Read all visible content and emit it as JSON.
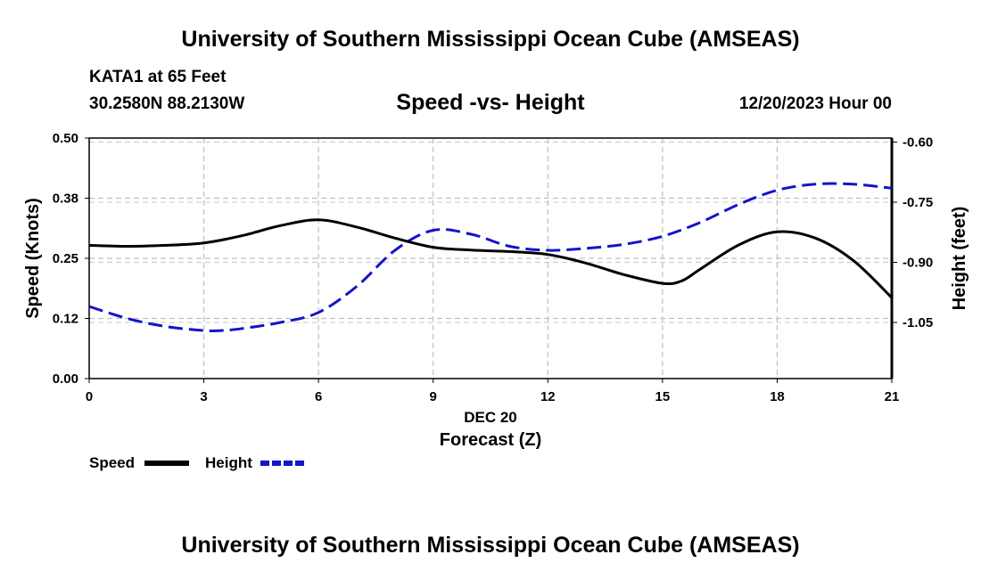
{
  "header": {
    "title_top": "University of Southern Mississippi Ocean Cube (AMSEAS)",
    "title_bottom": "University of Southern Mississippi Ocean Cube (AMSEAS)",
    "station": "KATA1 at 65 Feet",
    "coords": "30.2580N  88.2130W",
    "subtitle": "Speed -vs- Height",
    "datetime": "12/20/2023 Hour 00"
  },
  "chart_data": {
    "type": "line",
    "title": "Speed -vs- Height",
    "xlabel": "Forecast (Z)",
    "xlabel_date": "DEC 20",
    "ylabel": "Speed (Knots)",
    "y2label": "Height (feet)",
    "xlim": [
      0,
      21
    ],
    "ylim": [
      0,
      0.5
    ],
    "y2lim": [
      -1.19,
      -0.59
    ],
    "x_ticks": [
      0,
      3,
      6,
      9,
      12,
      15,
      18,
      21
    ],
    "x_tick_labels": [
      "0",
      "3",
      "6",
      "9",
      "12",
      "15",
      "18",
      "21"
    ],
    "y_ticks": [
      0,
      0.125,
      0.25,
      0.375,
      0.5
    ],
    "y_tick_labels": [
      "0.00",
      "0.12",
      "0.25",
      "0.38",
      "0.50"
    ],
    "y2_ticks": [
      -0.6,
      -0.75,
      -0.9,
      -1.05
    ],
    "y2_tick_labels": [
      "-0.60",
      "-0.75",
      "-0.90",
      "-1.05"
    ],
    "grid": true,
    "legend": [
      "Speed",
      "Height"
    ],
    "series": [
      {
        "name": "Speed",
        "axis": "left",
        "color": "#000000",
        "style": "solid",
        "x": [
          0,
          1,
          2,
          3,
          4,
          5,
          6,
          7,
          8,
          9,
          10,
          11,
          12,
          13,
          14,
          15,
          15.5,
          16,
          17,
          18,
          19,
          20,
          21
        ],
        "y": [
          0.277,
          0.275,
          0.277,
          0.282,
          0.297,
          0.318,
          0.33,
          0.315,
          0.292,
          0.273,
          0.267,
          0.264,
          0.258,
          0.24,
          0.216,
          0.198,
          0.203,
          0.228,
          0.278,
          0.305,
          0.292,
          0.245,
          0.168
        ]
      },
      {
        "name": "Height",
        "axis": "right",
        "color": "#1414c8",
        "style": "dashed",
        "x": [
          0,
          1,
          2,
          3,
          3.5,
          4,
          5,
          6,
          7,
          8,
          9,
          10,
          11,
          12,
          13,
          14,
          15,
          16,
          17,
          18,
          19,
          20,
          21
        ],
        "y": [
          -1.01,
          -1.04,
          -1.06,
          -1.07,
          -1.07,
          -1.065,
          -1.05,
          -1.025,
          -0.96,
          -0.87,
          -0.82,
          -0.83,
          -0.86,
          -0.87,
          -0.865,
          -0.855,
          -0.835,
          -0.8,
          -0.755,
          -0.72,
          -0.705,
          -0.705,
          -0.715
        ]
      }
    ]
  }
}
